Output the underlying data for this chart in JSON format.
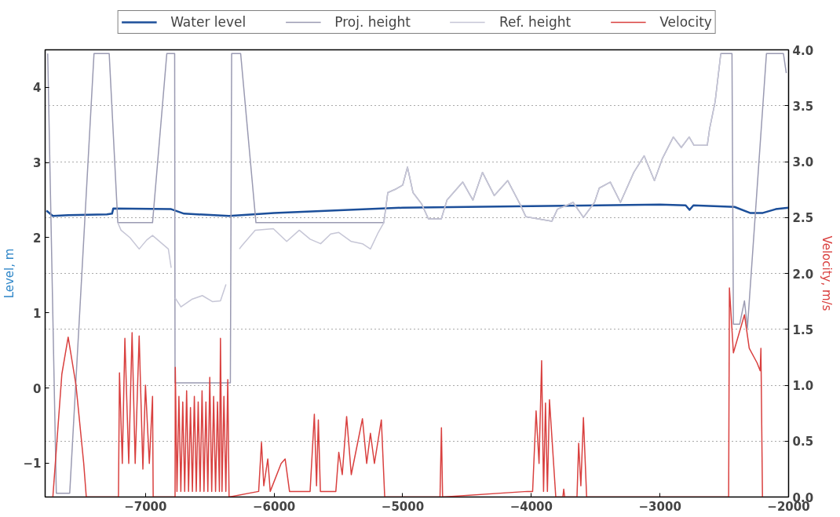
{
  "chart_data": {
    "type": "line",
    "ylabel": "Level, m",
    "y2label": "Velocity, m/s",
    "xlim": [
      -7780,
      -2000
    ],
    "ylim": [
      -1.45,
      4.5
    ],
    "y2lim": [
      0,
      4
    ],
    "xticks": [
      {
        "value": -7000,
        "label": "−7000"
      },
      {
        "value": -6000,
        "label": "−6000"
      },
      {
        "value": -5000,
        "label": "−5000"
      },
      {
        "value": -4000,
        "label": "−4000"
      },
      {
        "value": -3000,
        "label": "−3000"
      },
      {
        "value": -2000,
        "label": "−2000"
      }
    ],
    "yticks": [
      {
        "value": -1,
        "label": "−1"
      },
      0,
      1,
      2,
      3,
      4
    ],
    "y2ticks": [
      {
        "value": 0,
        "label": "0.0"
      },
      0.5,
      {
        "value": 1,
        "label": "1.0"
      },
      1.5,
      {
        "value": 2,
        "label": "2.0"
      },
      2.5,
      {
        "value": 3,
        "label": "3.0"
      },
      3.5,
      {
        "value": 4,
        "label": "4.0"
      }
    ],
    "grid": "y",
    "legend": "top",
    "series": [
      {
        "name": "Water level",
        "color": "#1c4f9a",
        "x": [
          -7770,
          -7720,
          -7600,
          -7300,
          -7260,
          -7250,
          -6800,
          -6700,
          -6350,
          -6000,
          -5000,
          -4000,
          -3000,
          -2800,
          -2770,
          -2740,
          -2420,
          -2300,
          -2200,
          -2100,
          -2000
        ],
        "values": [
          2.36,
          2.29,
          2.3,
          2.31,
          2.32,
          2.39,
          2.38,
          2.32,
          2.29,
          2.33,
          2.4,
          2.42,
          2.44,
          2.43,
          2.37,
          2.43,
          2.41,
          2.33,
          2.33,
          2.38,
          2.4
        ]
      },
      {
        "name": "Proj. height",
        "color": "#9a9ab2",
        "x": [
          -7760,
          -7693,
          -7589,
          -7400,
          -7282,
          -7215,
          -6945,
          -6834,
          -6773,
          -6770,
          -6340,
          -6330,
          -6260,
          -6141,
          -5147,
          -5116,
          -5050,
          -5000,
          -4963,
          -4920,
          -4853,
          -4800,
          -4700,
          -4656,
          -4533,
          -4454,
          -4380,
          -4288,
          -4184,
          -4086,
          -4043,
          -3840,
          -3797,
          -3675,
          -3595,
          -3509,
          -3472,
          -3386,
          -3307,
          -3203,
          -3123,
          -3043,
          -2982,
          -2896,
          -2834,
          -2773,
          -2736,
          -2632,
          -2614,
          -2571,
          -2527,
          -2440,
          -2429,
          -2380,
          -2343,
          -2320,
          -2172,
          -2040,
          -2018
        ],
        "values": [
          4.45,
          -1.4,
          -1.4,
          4.45,
          4.45,
          2.2,
          2.2,
          4.45,
          4.45,
          0.07,
          0.07,
          4.45,
          4.45,
          2.2,
          2.2,
          2.6,
          2.65,
          2.7,
          2.94,
          2.6,
          2.45,
          2.25,
          2.25,
          2.5,
          2.74,
          2.5,
          2.87,
          2.56,
          2.76,
          2.44,
          2.28,
          2.22,
          2.38,
          2.47,
          2.27,
          2.47,
          2.66,
          2.74,
          2.47,
          2.87,
          3.09,
          2.76,
          3.05,
          3.34,
          3.2,
          3.34,
          3.23,
          3.23,
          3.45,
          3.81,
          4.45,
          4.45,
          0.85,
          0.85,
          1.16,
          0.8,
          4.45,
          4.45,
          4.19
        ]
      },
      {
        "name": "Ref. height",
        "color": "#c6c6d6",
        "x": [
          -7215,
          -7190,
          -7120,
          -7049,
          -6990,
          -6945,
          -6822,
          -6800,
          -6790,
          -6770,
          -6724,
          -6640,
          -6558,
          -6480,
          -6417,
          -6374,
          -6360,
          -6270,
          -6252,
          -6147,
          -6006,
          -5902,
          -5804,
          -5720,
          -5638,
          -5560,
          -5497,
          -5400,
          -5313,
          -5251,
          -5190,
          -5147,
          -5116,
          -5050,
          -5000,
          -4963,
          -4920,
          -4853,
          -4800,
          -4700,
          -4656,
          -4533,
          -4454,
          -4380,
          -4288,
          -4184,
          -4086,
          -4043,
          -3840,
          -3797,
          -3675,
          -3595,
          -3509,
          -3472,
          -3386,
          -3307,
          -3203,
          -3123,
          -3043,
          -2982,
          -2896,
          -2834,
          -2773,
          -2736,
          -2632,
          -2614,
          -2571,
          -2527
        ],
        "values": [
          2.2,
          2.1,
          2.0,
          1.85,
          1.97,
          2.03,
          1.85,
          1.6,
          null,
          1.2,
          1.08,
          1.18,
          1.23,
          1.15,
          1.16,
          1.38,
          null,
          1.85,
          1.89,
          2.1,
          2.12,
          1.95,
          2.1,
          1.98,
          1.92,
          2.05,
          2.07,
          1.95,
          1.92,
          1.85,
          2.07,
          2.2,
          2.6,
          2.65,
          2.7,
          2.94,
          2.6,
          2.45,
          2.25,
          2.25,
          2.5,
          2.74,
          2.5,
          2.87,
          2.56,
          2.76,
          2.44,
          2.28,
          2.22,
          2.38,
          2.47,
          2.27,
          2.47,
          2.66,
          2.74,
          2.47,
          2.87,
          3.09,
          2.76,
          3.05,
          3.34,
          3.2,
          3.34,
          3.23,
          3.23,
          3.45,
          3.81,
          4.45
        ]
      },
      {
        "name": "Velocity",
        "color": "#d9403f",
        "axis": "y2",
        "x": [
          -7720,
          -7650,
          -7601,
          -7540,
          -7480,
          -7460,
          -7210,
          -7202,
          -7180,
          -7160,
          -7130,
          -7104,
          -7080,
          -7049,
          -7020,
          -7000,
          -6970,
          -6945,
          -6940,
          -6770,
          -6768,
          -6755,
          -6740,
          -6725,
          -6710,
          -6695,
          -6680,
          -6665,
          -6650,
          -6635,
          -6620,
          -6605,
          -6590,
          -6575,
          -6560,
          -6545,
          -6530,
          -6515,
          -6500,
          -6485,
          -6470,
          -6455,
          -6440,
          -6425,
          -6417,
          -6405,
          -6390,
          -6375,
          -6360,
          -6350,
          -6120,
          -6098,
          -6080,
          -6049,
          -6030,
          -5945,
          -5914,
          -5880,
          -5720,
          -5687,
          -5670,
          -5656,
          -5640,
          -5520,
          -5497,
          -5470,
          -5436,
          -5400,
          -5313,
          -5280,
          -5251,
          -5220,
          -5166,
          -5140,
          -4710,
          -4699,
          -4690,
          -4030,
          -3990,
          -3963,
          -3940,
          -3920,
          -3905,
          -3890,
          -3875,
          -3859,
          -3810,
          -3755,
          -3748,
          -3741,
          -3645,
          -3632,
          -3615,
          -3595,
          -3570,
          -2466,
          -2460,
          -2429,
          -2343,
          -2306,
          -2245,
          -2221,
          -2215,
          -2203
        ],
        "values": [
          0,
          1.1,
          1.43,
          1.0,
          0.3,
          0,
          0,
          1.11,
          0.3,
          1.42,
          0.3,
          1.47,
          0.3,
          1.44,
          0.25,
          1.0,
          0.3,
          0.9,
          0,
          0,
          1.16,
          0.05,
          0.9,
          0.05,
          0.85,
          0.05,
          0.95,
          0.05,
          0.8,
          0.05,
          0.9,
          0.05,
          0.85,
          0.05,
          0.95,
          0.05,
          0.85,
          0.05,
          1.07,
          0.05,
          0.9,
          0.05,
          0.85,
          0.05,
          1.42,
          0.05,
          0.9,
          0.05,
          1.05,
          0,
          0.05,
          0.49,
          0.1,
          0.34,
          0.05,
          0.3,
          0.34,
          0.05,
          0.05,
          0.74,
          0.1,
          0.69,
          0.05,
          0.05,
          0.4,
          0.2,
          0.72,
          0.2,
          0.7,
          0.3,
          0.57,
          0.3,
          0.69,
          0,
          0,
          0.62,
          0,
          0.05,
          0.05,
          0.77,
          0.3,
          1.22,
          0.05,
          0.84,
          0.05,
          0.87,
          0,
          0,
          0.07,
          0,
          0,
          0.48,
          0.1,
          0.71,
          0,
          0,
          1.87,
          1.29,
          1.63,
          1.33,
          1.2,
          1.13,
          1.33,
          0
        ]
      }
    ]
  }
}
